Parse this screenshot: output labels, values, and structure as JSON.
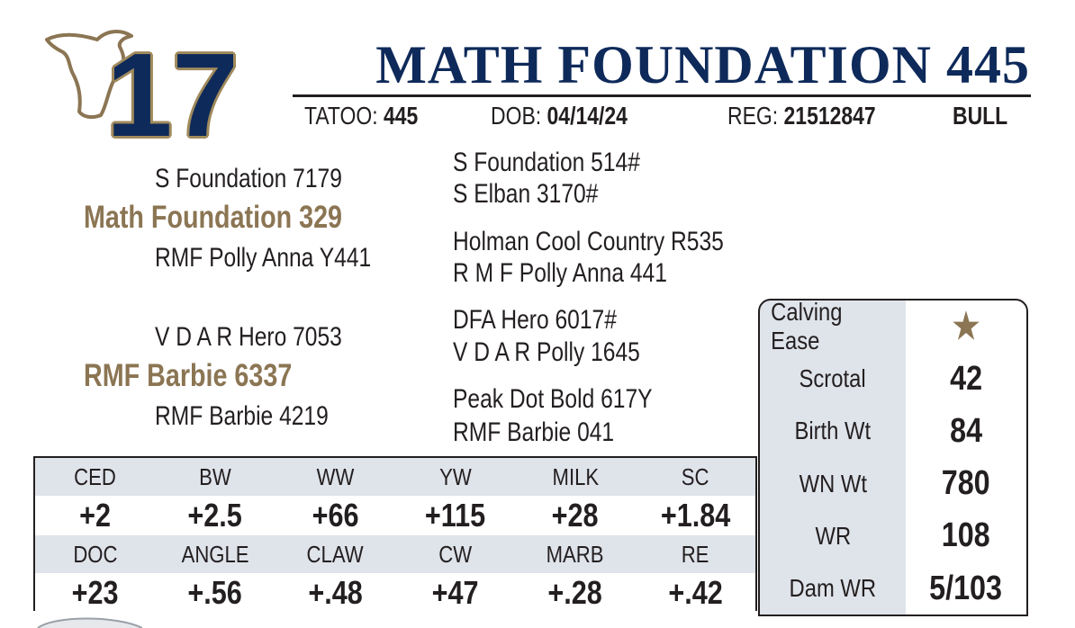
{
  "lot_number": "17",
  "title": "MATH FOUNDATION 445",
  "info": [
    {
      "label": "TATOO:",
      "value": "445"
    },
    {
      "label": "DOB:",
      "value": "04/14/24"
    },
    {
      "label": "REG:",
      "value": "21512847"
    }
  ],
  "sex": "BULL",
  "pedigree": {
    "sire": "Math Foundation 329",
    "sire_sire": "S Foundation 7179",
    "sire_dam": "RMF Polly Anna Y441",
    "sire_sire_sire": "S Foundation 514#",
    "sire_sire_dam": "S Elban 3170#",
    "sire_dam_sire": "Holman Cool Country R535",
    "sire_dam_dam": "R M F Polly Anna 441",
    "dam": "RMF Barbie 6337",
    "dam_sire": "V D A R Hero 7053",
    "dam_dam": "RMF Barbie 4219",
    "dam_sire_sire": "DFA Hero 6017#",
    "dam_sire_dam": "V D A R Polly 1645",
    "dam_dam_sire": "Peak Dot Bold 617Y",
    "dam_dam_dam": "RMF Barbie 041"
  },
  "epds": [
    {
      "labels": [
        "CED",
        "BW",
        "WW",
        "YW",
        "MILK",
        "SC"
      ],
      "values": [
        "+2",
        "+2.5",
        "+66",
        "+115",
        "+28",
        "+1.84"
      ]
    },
    {
      "labels": [
        "DOC",
        "ANGLE",
        "CLAW",
        "CW",
        "MARB",
        "RE"
      ],
      "values": [
        "+23",
        "+.56",
        "+.48",
        "+47",
        "+.28",
        "+.42"
      ]
    }
  ],
  "traits": [
    {
      "label": "Calving Ease",
      "value": "★"
    },
    {
      "label": "Scrotal",
      "value": "42"
    },
    {
      "label": "Birth Wt",
      "value": "84"
    },
    {
      "label": "WN Wt",
      "value": "780"
    },
    {
      "label": "WR",
      "value": "108"
    },
    {
      "label": "Dam WR",
      "value": "5/103"
    }
  ]
}
